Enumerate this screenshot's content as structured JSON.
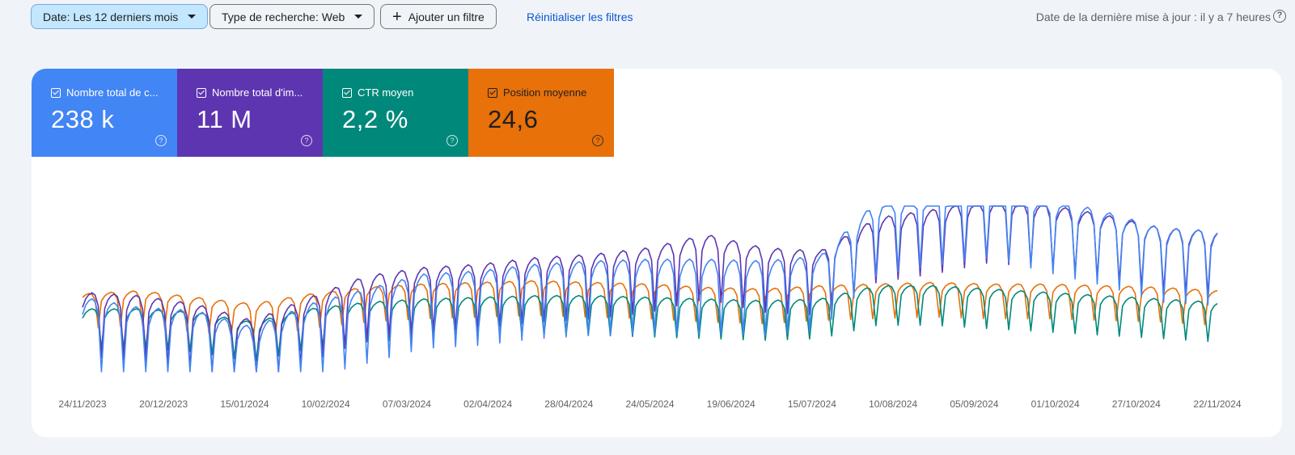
{
  "toolbar": {
    "date_filter": "Date: Les 12 derniers mois",
    "search_type_filter": "Type de recherche: Web",
    "add_filter": "Ajouter un filtre",
    "reset_filters": "Réinitialiser les filtres",
    "last_update": "Date de la dernière mise à jour : il y a 7 heures"
  },
  "metrics": [
    {
      "label": "Nombre total de c...",
      "value": "238 k",
      "color": "#4285f4",
      "checked": true
    },
    {
      "label": "Nombre total d'im...",
      "value": "11 M",
      "color": "#5e35b1",
      "checked": true
    },
    {
      "label": "CTR moyen",
      "value": "2,2 %",
      "color": "#00897b",
      "checked": true
    },
    {
      "label": "Position moyenne",
      "value": "24,6",
      "color": "#e8710a",
      "checked": true
    }
  ],
  "chart_data": {
    "type": "line",
    "x_tick_labels": [
      "24/11/2023",
      "20/12/2023",
      "15/01/2024",
      "10/02/2024",
      "07/03/2024",
      "02/04/2024",
      "28/04/2024",
      "24/05/2024",
      "19/06/2024",
      "15/07/2024",
      "10/08/2024",
      "05/09/2024",
      "01/10/2024",
      "27/10/2024",
      "22/11/2024"
    ],
    "x_range": [
      "24/11/2023",
      "22/11/2024"
    ],
    "series_colors": {
      "clicks": "#4285f4",
      "impressions": "#5e35b1",
      "ctr": "#00897b",
      "position": "#e8710a"
    },
    "series_anchors_normalized": {
      "clicks": [
        0.3,
        0.24,
        0.22,
        0.12,
        0.26,
        0.35,
        0.44,
        0.46,
        0.5,
        0.52,
        0.53,
        0.53,
        0.52,
        0.55,
        0.88,
        0.94,
        0.99,
        0.9,
        0.82,
        0.72,
        0.7
      ],
      "impressions": [
        0.35,
        0.33,
        0.28,
        0.18,
        0.32,
        0.45,
        0.5,
        0.52,
        0.56,
        0.58,
        0.62,
        0.7,
        0.62,
        0.6,
        0.8,
        0.85,
        0.92,
        0.88,
        0.82,
        0.74,
        0.72
      ],
      "ctr": [
        0.3,
        0.3,
        0.28,
        0.22,
        0.3,
        0.34,
        0.36,
        0.37,
        0.38,
        0.38,
        0.37,
        0.36,
        0.35,
        0.36,
        0.44,
        0.44,
        0.42,
        0.4,
        0.38,
        0.36,
        0.34
      ],
      "position": [
        0.4,
        0.42,
        0.38,
        0.34,
        0.4,
        0.44,
        0.46,
        0.47,
        0.48,
        0.47,
        0.46,
        0.44,
        0.43,
        0.45,
        0.46,
        0.47,
        0.46,
        0.46,
        0.45,
        0.44,
        0.42
      ]
    }
  }
}
